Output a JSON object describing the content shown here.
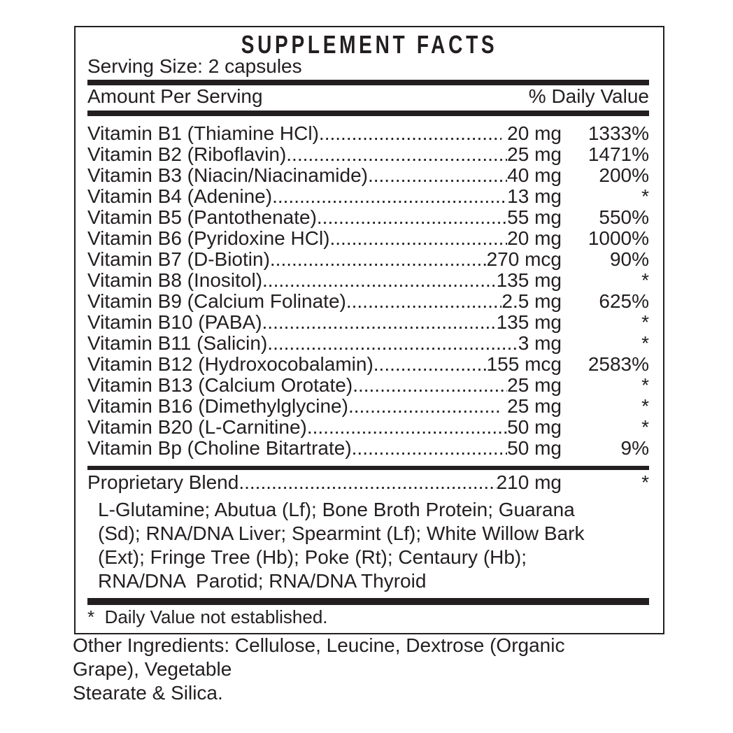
{
  "title": "SUPPLEMENT FACTS",
  "serving_size": "Serving Size: 2 capsules",
  "header": {
    "amount_label": "Amount Per Serving",
    "dv_label": "% Daily Value"
  },
  "nutrients": [
    {
      "name": "Vitamin B1 (Thiamine HCl)",
      "amount": " 20 mg",
      "dv": "1333%"
    },
    {
      "name": "Vitamin B2 (Riboflavin)",
      "amount": "25 mg",
      "dv": "1471%"
    },
    {
      "name": "Vitamin B3 (Niacin/Niacinamide)",
      "amount": "40 mg",
      "dv": "200%"
    },
    {
      "name": "Vitamin B4 (Adenine)",
      "amount": "13 mg",
      "dv": "*"
    },
    {
      "name": "Vitamin B5 (Pantothenate)",
      "amount": "55 mg",
      "dv": "550%"
    },
    {
      "name": "Vitamin B6 (Pyridoxine HCl)",
      "amount": "20 mg",
      "dv": "1000%"
    },
    {
      "name": "Vitamin B7 (D-Biotin)",
      "amount": "270 mcg",
      "dv": "90%"
    },
    {
      "name": "Vitamin B8 (Inositol)",
      "amount": "135 mg",
      "dv": "*"
    },
    {
      "name": "Vitamin B9 (Calcium Folinate)",
      "amount": "2.5 mg",
      "dv": "625%"
    },
    {
      "name": "Vitamin B10 (PABA)",
      "amount": "135 mg",
      "dv": "*"
    },
    {
      "name": "Vitamin B11 (Salicin)",
      "amount": "3 mg",
      "dv": "*"
    },
    {
      "name": "Vitamin B12 (Hydroxocobalamin)",
      "amount": "155 mcg",
      "dv": "2583%"
    },
    {
      "name": "Vitamin B13 (Calcium Orotate)",
      "amount": "25 mg",
      "dv": "*"
    },
    {
      "name": "Vitamin B16 (Dimethylglycine)",
      "amount": " 25 mg",
      "dv": "*"
    },
    {
      "name": "Vitamin B20 (L-Carnitine)",
      "amount": "50 mg",
      "dv": "*"
    },
    {
      "name": "Vitamin Bp (Choline Bitartrate)",
      "amount": "50 mg",
      "dv": "9%"
    }
  ],
  "blend": {
    "name": "Proprietary Blend",
    "amount": "210 mg",
    "dv": "*",
    "lines": [
      "L-Glutamine; Abutua (Lf); Bone Broth Protein; Guarana",
      "(Sd); RNA/DNA Liver; Spearmint (Lf); White Willow Bark",
      "(Ext); Fringe Tree (Hb); Poke (Rt); Centaury (Hb);",
      "RNA/DNA  Parotid; RNA/DNA Thyroid"
    ]
  },
  "footnote": "*  Daily Value not established.",
  "other_ingredients": [
    "Other Ingredients: Cellulose, Leucine, Dextrose (Organic",
    "Grape), Vegetable",
    "Stearate & Silica."
  ]
}
